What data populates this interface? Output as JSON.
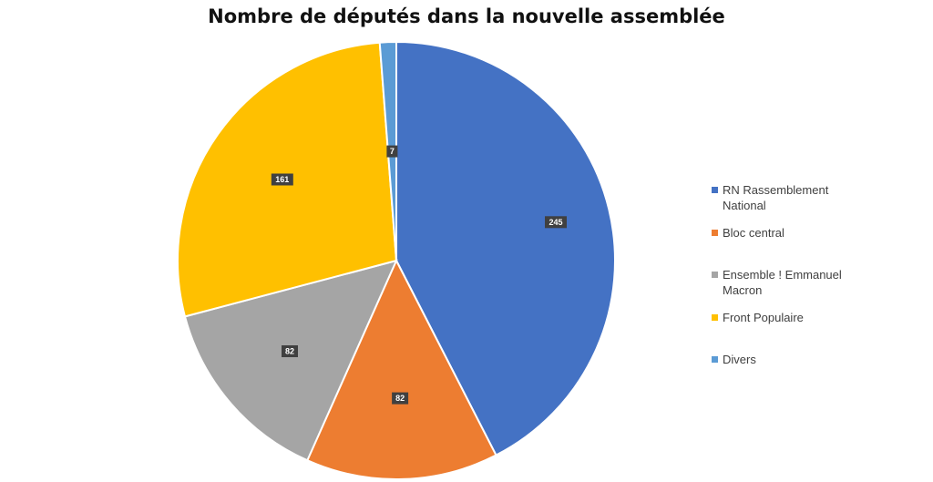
{
  "chart_data": {
    "type": "pie",
    "title": "Nombre de députés dans la nouvelle assemblée",
    "categories": [
      "RN Rassemblement National",
      "Bloc central",
      "Ensemble ! Emmanuel Macron",
      "Front Populaire",
      "Divers"
    ],
    "values": [
      245,
      82,
      82,
      161,
      7
    ],
    "data_labels": [
      "245",
      "82",
      "82",
      "161",
      "7"
    ],
    "colors": [
      "#4472C4",
      "#ED7D31",
      "#A5A5A5",
      "#FFC000",
      "#5B9BD5"
    ],
    "legend": {
      "position": "right",
      "labels": [
        "RN Rassemblement\nNational",
        "Bloc central",
        "Ensemble !  Emmanuel\nMacron",
        "Front Populaire",
        "Divers"
      ]
    }
  }
}
